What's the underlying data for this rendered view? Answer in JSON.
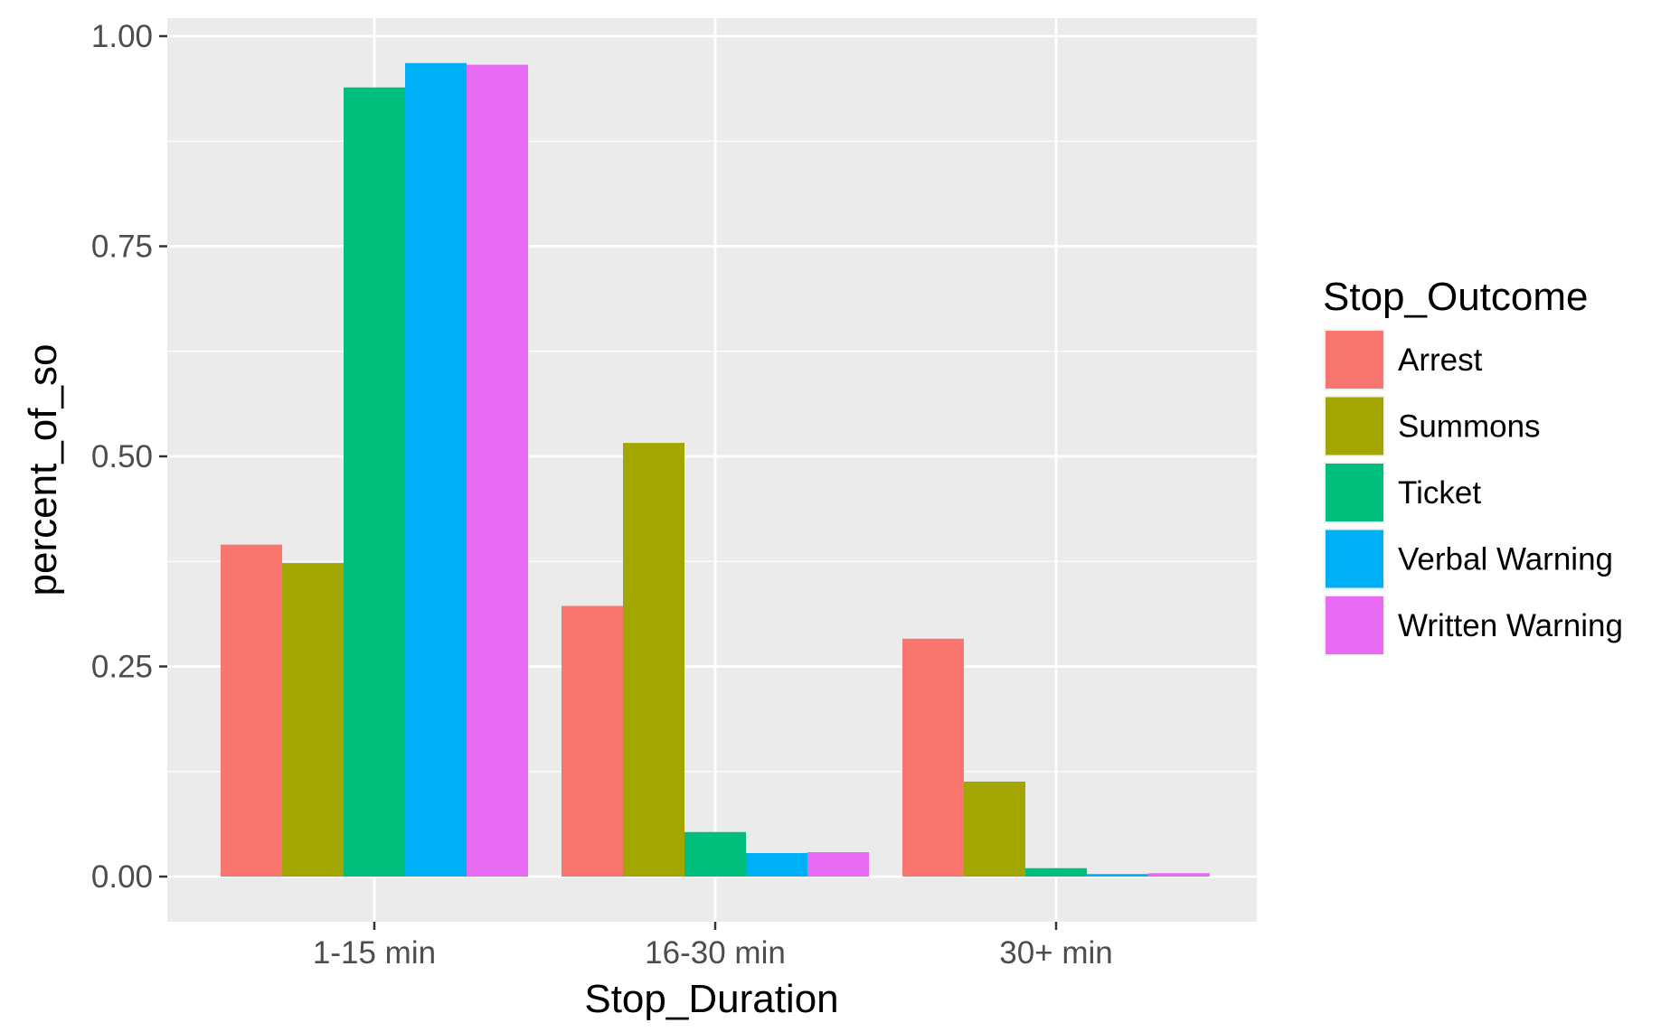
{
  "chart_data": {
    "type": "bar",
    "title": "",
    "xlabel": "Stop_Duration",
    "ylabel": "percent_of_so",
    "categories": [
      "1-15 min",
      "16-30 min",
      "30+ min"
    ],
    "ylim": [
      -0.05,
      1.02
    ],
    "yticks": [
      0.0,
      0.25,
      0.5,
      0.75,
      1.0
    ],
    "ytick_labels": [
      "0.00",
      "0.25",
      "0.50",
      "0.75",
      "1.00"
    ],
    "grid": true,
    "legend": {
      "title": "Stop_Outcome",
      "position": "right"
    },
    "series": [
      {
        "name": "Arrest",
        "color": "#F8766D",
        "values": [
          0.395,
          0.322,
          0.283
        ]
      },
      {
        "name": "Summons",
        "color": "#A3A500",
        "values": [
          0.373,
          0.516,
          0.113
        ]
      },
      {
        "name": "Ticket",
        "color": "#00BF7D",
        "values": [
          0.939,
          0.053,
          0.01
        ]
      },
      {
        "name": "Verbal Warning",
        "color": "#00B0F6",
        "values": [
          0.968,
          0.028,
          0.003
        ]
      },
      {
        "name": "Written Warning",
        "color": "#E76BF3",
        "values": [
          0.966,
          0.029,
          0.004
        ]
      }
    ]
  }
}
